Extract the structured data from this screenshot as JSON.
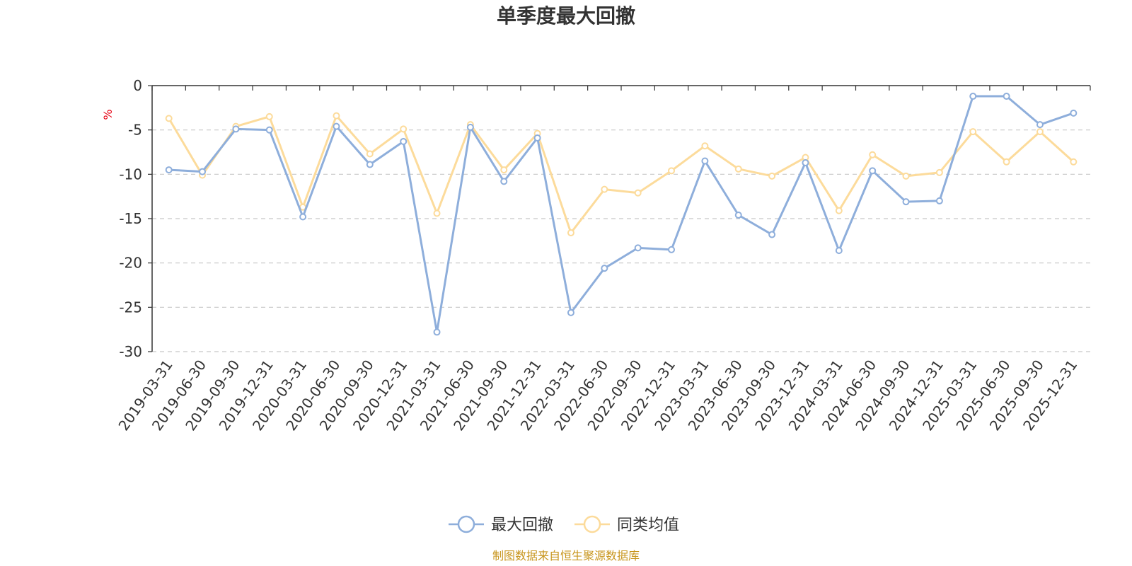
{
  "chart_data": {
    "type": "line",
    "title": "单季度最大回撤",
    "ylabel": "%",
    "ylim": [
      -30,
      0
    ],
    "yticks": [
      0,
      -5,
      -10,
      -15,
      -20,
      -25,
      -30
    ],
    "grid": "horizontal-dashed",
    "legend_position": "bottom-center",
    "categories": [
      "2019-03-31",
      "2019-06-30",
      "2019-09-30",
      "2019-12-31",
      "2020-03-31",
      "2020-06-30",
      "2020-09-30",
      "2020-12-31",
      "2021-03-31",
      "2021-06-30",
      "2021-09-30",
      "2021-12-31",
      "2022-03-31",
      "2022-06-30",
      "2022-09-30",
      "2022-12-31",
      "2023-03-31",
      "2023-06-30",
      "2023-09-30",
      "2023-12-31",
      "2024-03-31",
      "2024-06-30",
      "2024-09-30",
      "2024-12-31",
      "2025-03-31",
      "2025-06-30",
      "2025-09-30",
      "2025-12-31"
    ],
    "series": [
      {
        "name": "最大回撤",
        "color": "#8eaedb",
        "values": [
          -9.5,
          -9.7,
          -4.9,
          -5.0,
          -14.8,
          -4.6,
          -8.9,
          -6.3,
          -27.8,
          -4.7,
          -10.8,
          -5.9,
          -25.6,
          -20.6,
          -18.3,
          -18.5,
          -8.5,
          -14.6,
          -16.8,
          -8.7,
          -18.6,
          -9.6,
          -13.1,
          -13.0,
          -1.2,
          -1.2,
          -4.4,
          -3.1
        ]
      },
      {
        "name": "同类均值",
        "color": "#fcdb9b",
        "values": [
          -3.7,
          -10.1,
          -4.6,
          -3.5,
          -13.7,
          -3.4,
          -7.7,
          -4.9,
          -14.4,
          -4.4,
          -9.5,
          -5.4,
          -16.6,
          -11.7,
          -12.1,
          -9.6,
          -6.8,
          -9.4,
          -10.2,
          -8.1,
          -14.1,
          -7.8,
          -10.2,
          -9.8,
          -5.2,
          -8.6,
          -5.2,
          -8.6
        ]
      }
    ],
    "source": "制图数据来自恒生聚源数据库"
  }
}
